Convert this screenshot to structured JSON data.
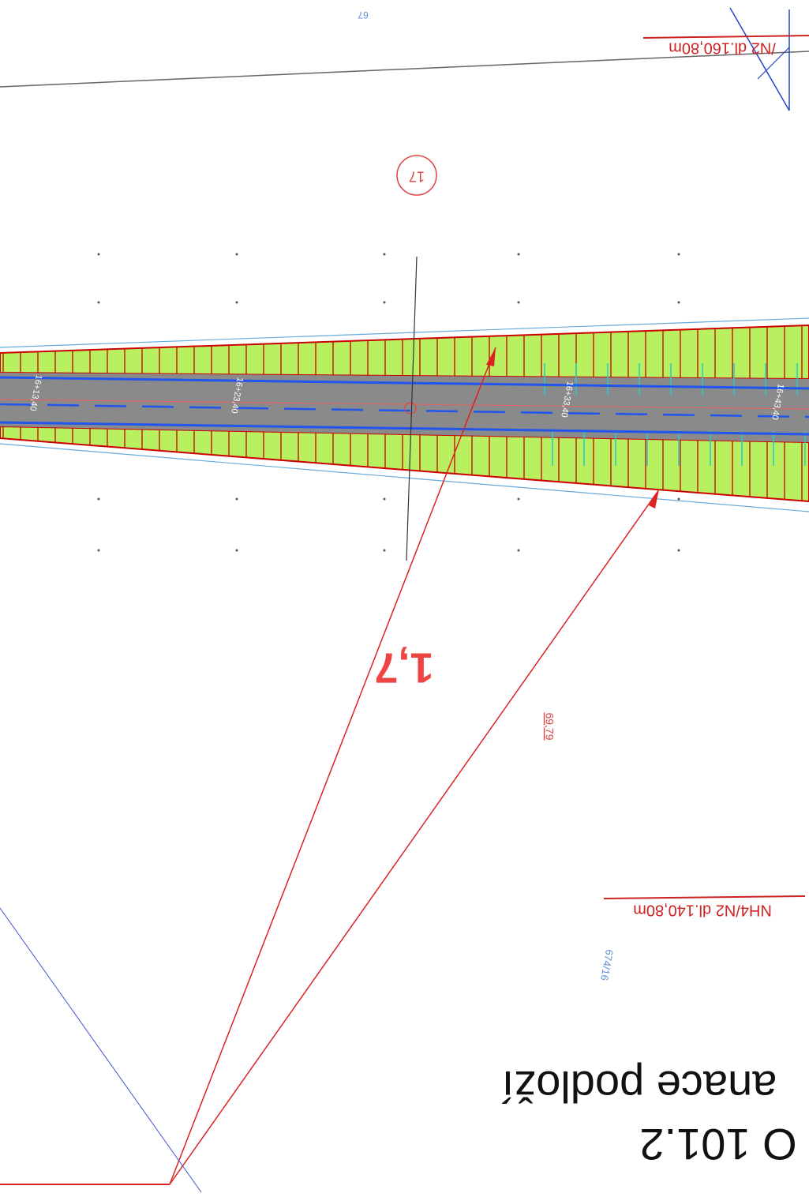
{
  "drawing": {
    "title_line1": "O 101.2",
    "title_line2": "anace podloží",
    "segment_top": "/N2  dl.160,80m",
    "segment_bottom": "NH4/N2  dl.140,80m",
    "parcel_top": "67",
    "parcel_bottom": "674/16",
    "circle_number": "17",
    "dimension": "1,7",
    "elevation": "69,79",
    "stations": [
      "16+13,40",
      "16+23,40",
      "16+33,40",
      "16+43,40"
    ]
  }
}
